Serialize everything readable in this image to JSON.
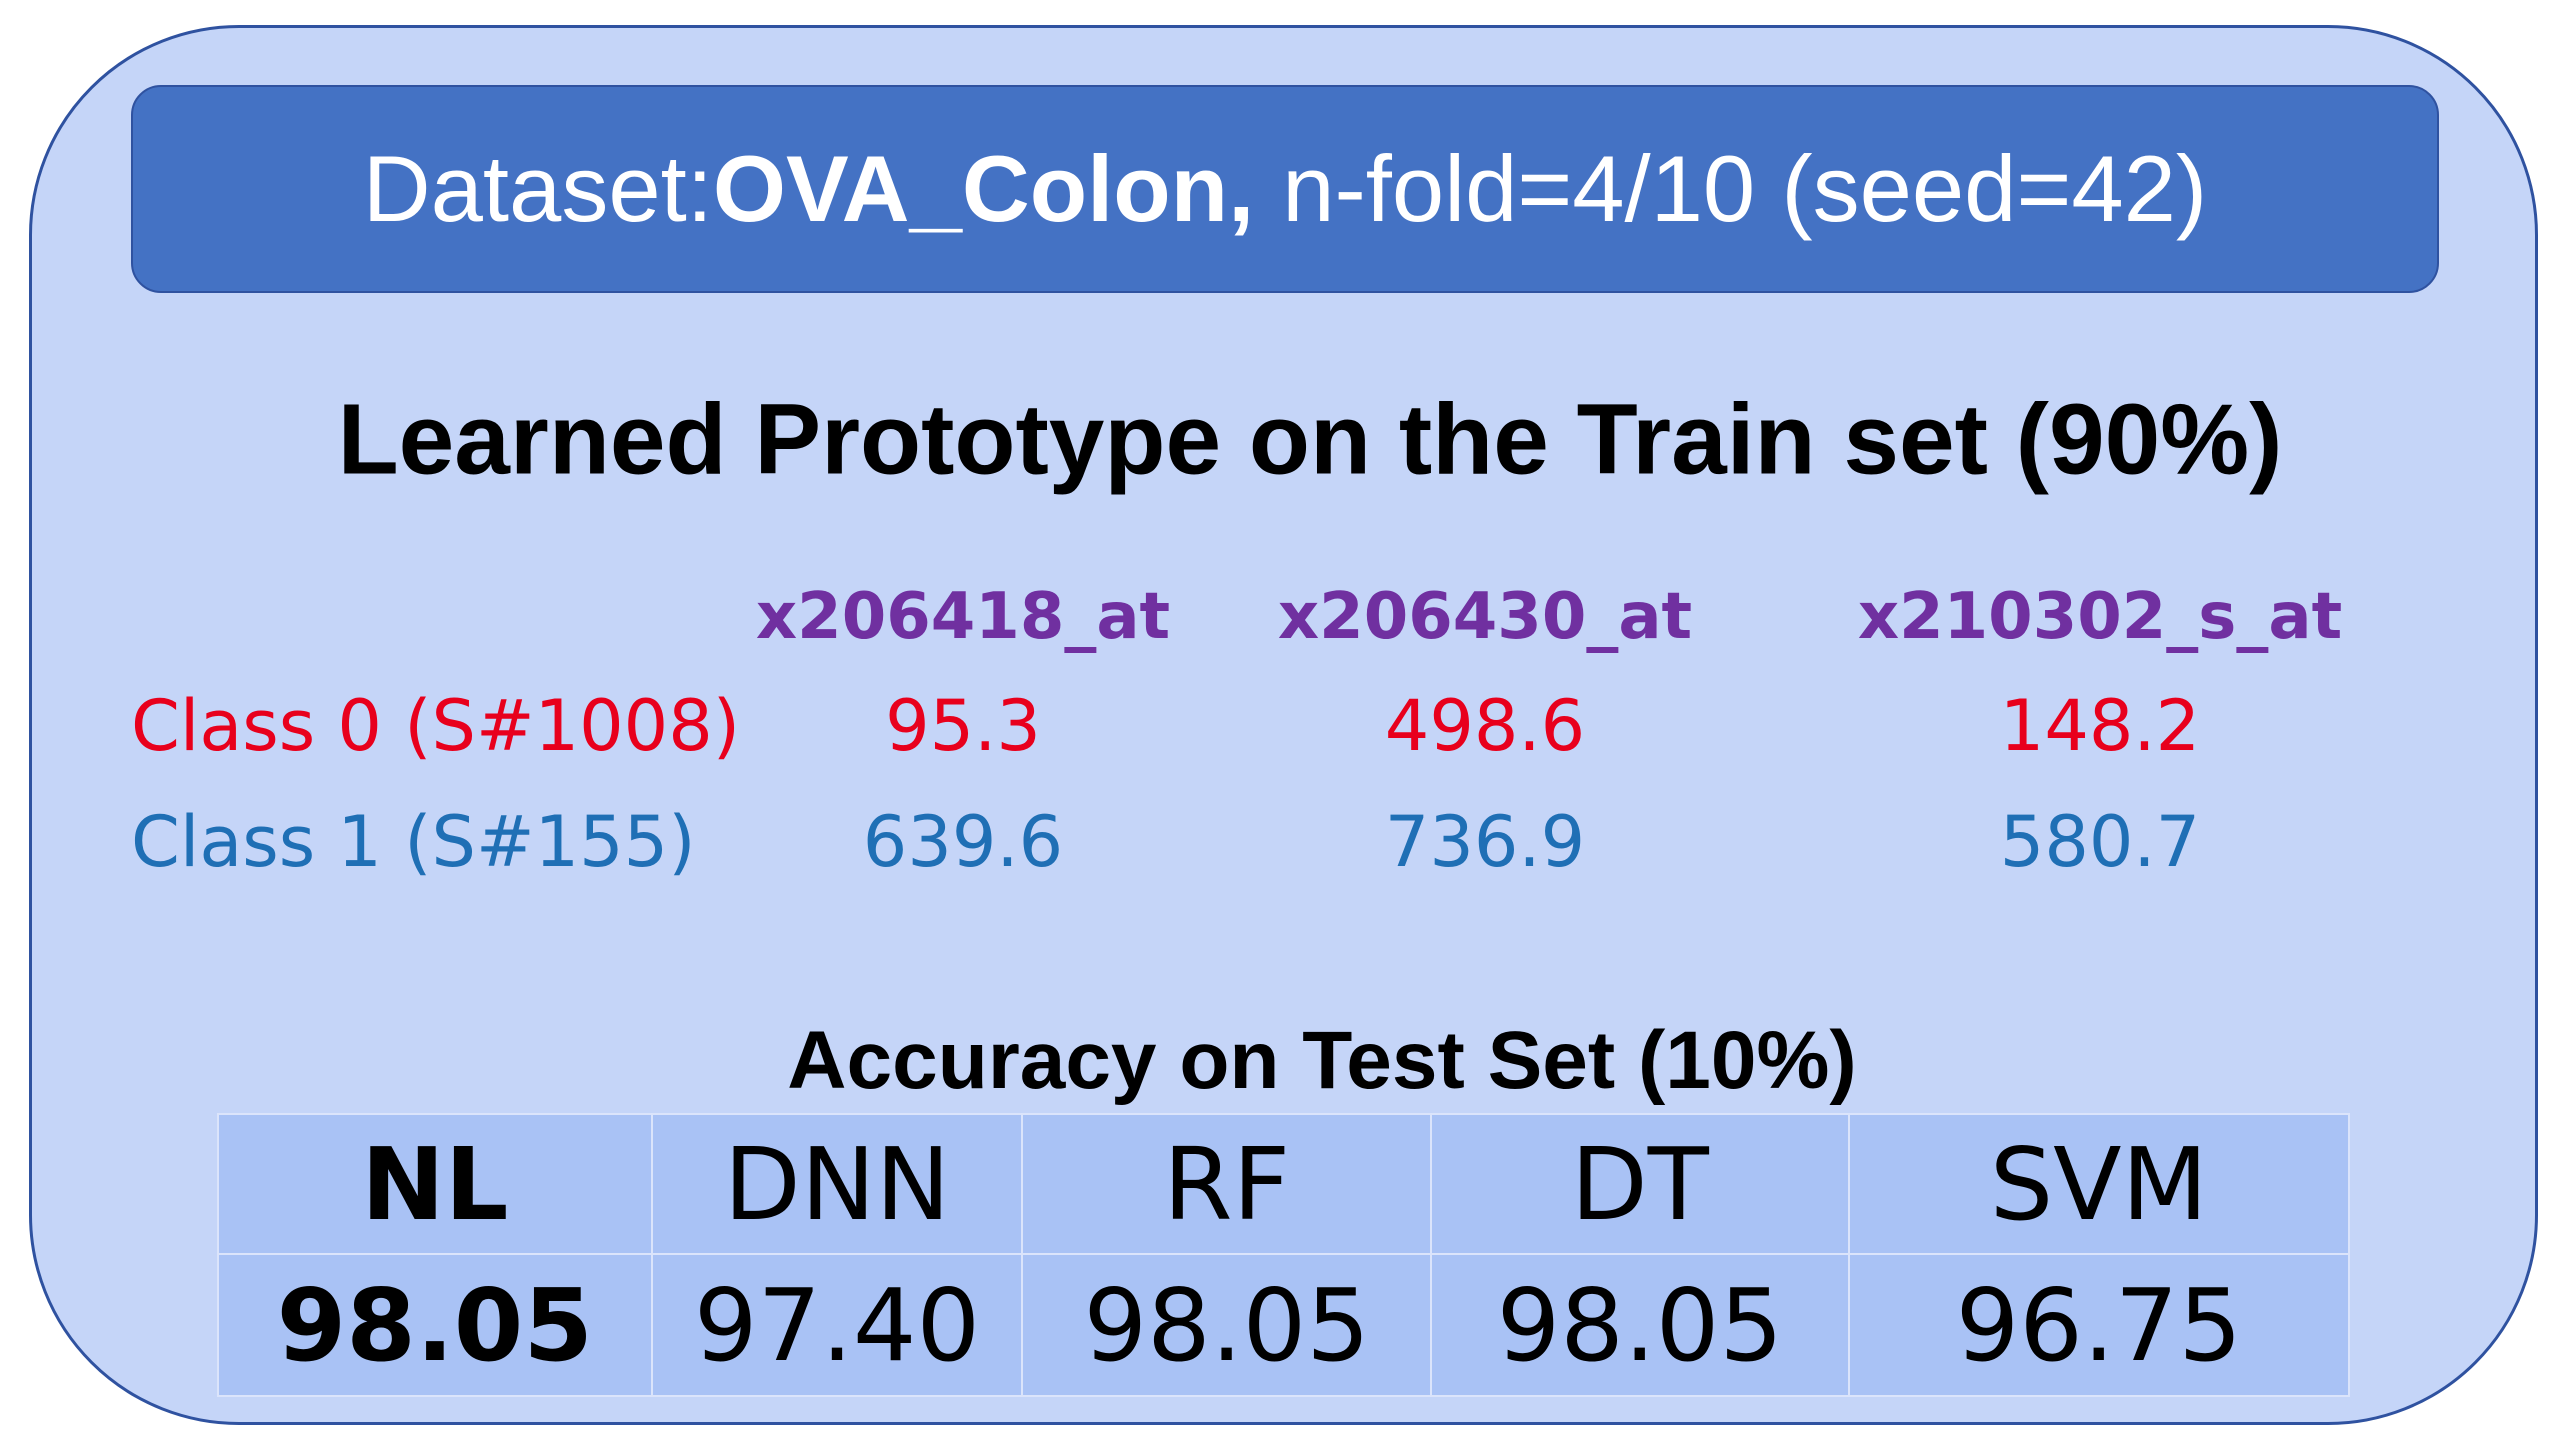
{
  "header": {
    "prefix": "Dataset:",
    "dataset": "OVA_Colon,",
    "detail": "n-fold=4/10 (seed=42)"
  },
  "prototype": {
    "title": "Learned Prototype on the Train set (90%)",
    "columns": [
      "x206418_at",
      "x206430_at",
      "x210302_s_at"
    ],
    "rows": [
      {
        "label": "Class 0 (S#1008)",
        "values": [
          "95.3",
          "498.6",
          "148.2"
        ]
      },
      {
        "label": "Class 1 (S#155)",
        "values": [
          "639.6",
          "736.9",
          "580.7"
        ]
      }
    ]
  },
  "accuracy": {
    "title": "Accuracy on Test Set (10%)",
    "headers": [
      "NL",
      "DNN",
      "RF",
      "DT",
      "SVM"
    ],
    "values": [
      "98.05",
      "97.40",
      "98.05",
      "98.05",
      "96.75"
    ]
  }
}
